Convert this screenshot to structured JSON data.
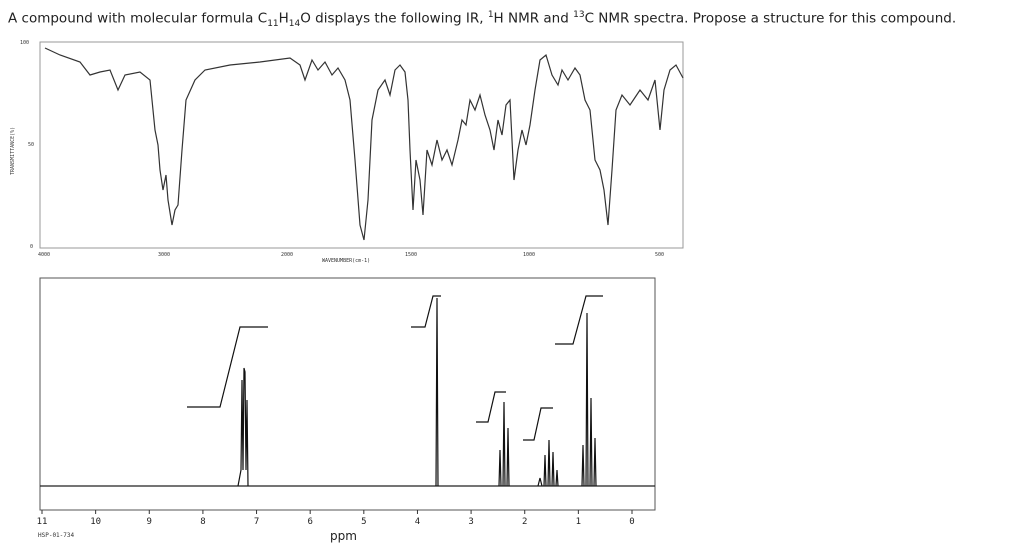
{
  "question": {
    "parts": [
      "A compound with molecular formula C",
      "11",
      "H",
      "14",
      "O displays the following IR, ",
      "1",
      "H NMR and ",
      "13",
      "C NMR spectra. Propose a structure for this compound."
    ]
  },
  "ir": {
    "y_axis_label": "TRANSMITTANCE(%)",
    "x_axis_label": "WAVENUMBER(cm-1)",
    "yticks": [
      "100",
      "50",
      "0"
    ],
    "xticks": [
      "4000",
      "3000",
      "2000",
      "1500",
      "1000",
      "500"
    ]
  },
  "nmr": {
    "xticks": [
      "11",
      "10",
      "9",
      "8",
      "7",
      "6",
      "5",
      "4",
      "3",
      "2",
      "1",
      "0"
    ],
    "code": "HSP-01-734",
    "x_axis_label": "ppm"
  }
}
